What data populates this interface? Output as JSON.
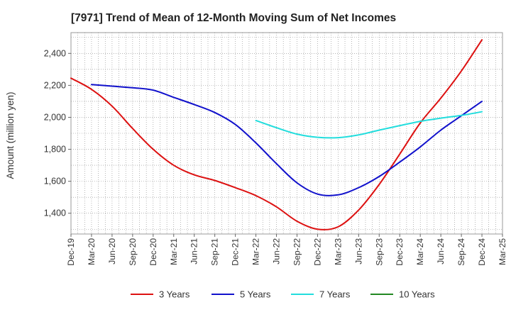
{
  "chart_data": {
    "type": "line",
    "title": "[7971]  Trend of Mean of 12-Month Moving Sum of Net Incomes",
    "xlabel": "",
    "ylabel": "Amount (million yen)",
    "ylim": [
      1270,
      2530
    ],
    "yticks": [
      1400,
      1600,
      1800,
      2000,
      2200,
      2400
    ],
    "ytick_labels": [
      "1,400",
      "1,600",
      "1,800",
      "2,000",
      "2,200",
      "2,400"
    ],
    "xticks": [
      "Dec-19",
      "Mar-20",
      "Jun-20",
      "Sep-20",
      "Dec-20",
      "Mar-21",
      "Jun-21",
      "Sep-21",
      "Dec-21",
      "Mar-22",
      "Jun-22",
      "Sep-22",
      "Dec-22",
      "Mar-23",
      "Jun-23",
      "Sep-23",
      "Dec-23",
      "Mar-24",
      "Jun-24",
      "Sep-24",
      "Dec-24",
      "Mar-25"
    ],
    "grid": true,
    "legend_position": "bottom",
    "series": [
      {
        "name": "3 Years",
        "color": "#dd1111",
        "points": [
          [
            "Dec-19",
            2245
          ],
          [
            "Mar-20",
            2175
          ],
          [
            "Jun-20",
            2070
          ],
          [
            "Sep-20",
            1930
          ],
          [
            "Dec-20",
            1800
          ],
          [
            "Mar-21",
            1700
          ],
          [
            "Jun-21",
            1640
          ],
          [
            "Sep-21",
            1605
          ],
          [
            "Dec-21",
            1560
          ],
          [
            "Mar-22",
            1510
          ],
          [
            "Jun-22",
            1440
          ],
          [
            "Sep-22",
            1350
          ],
          [
            "Dec-22",
            1300
          ],
          [
            "Mar-23",
            1315
          ],
          [
            "Jun-23",
            1420
          ],
          [
            "Sep-23",
            1580
          ],
          [
            "Dec-23",
            1770
          ],
          [
            "Mar-24",
            1965
          ],
          [
            "Jun-24",
            2120
          ],
          [
            "Sep-24",
            2290
          ],
          [
            "Dec-24",
            2485
          ]
        ]
      },
      {
        "name": "5 Years",
        "color": "#1111cc",
        "points": [
          [
            "Mar-20",
            2205
          ],
          [
            "Jun-20",
            2195
          ],
          [
            "Sep-20",
            2185
          ],
          [
            "Dec-20",
            2170
          ],
          [
            "Mar-21",
            2125
          ],
          [
            "Jun-21",
            2080
          ],
          [
            "Sep-21",
            2030
          ],
          [
            "Dec-21",
            1955
          ],
          [
            "Mar-22",
            1840
          ],
          [
            "Jun-22",
            1710
          ],
          [
            "Sep-22",
            1590
          ],
          [
            "Dec-22",
            1520
          ],
          [
            "Mar-23",
            1515
          ],
          [
            "Jun-23",
            1560
          ],
          [
            "Sep-23",
            1630
          ],
          [
            "Dec-23",
            1720
          ],
          [
            "Mar-24",
            1815
          ],
          [
            "Jun-24",
            1920
          ],
          [
            "Sep-24",
            2010
          ],
          [
            "Dec-24",
            2100
          ]
        ]
      },
      {
        "name": "7 Years",
        "color": "#22dddd",
        "points": [
          [
            "Mar-22",
            1980
          ],
          [
            "Jun-22",
            1935
          ],
          [
            "Sep-22",
            1895
          ],
          [
            "Dec-22",
            1875
          ],
          [
            "Mar-23",
            1873
          ],
          [
            "Jun-23",
            1890
          ],
          [
            "Sep-23",
            1920
          ],
          [
            "Dec-23",
            1948
          ],
          [
            "Mar-24",
            1975
          ],
          [
            "Jun-24",
            1995
          ],
          [
            "Sep-24",
            2012
          ],
          [
            "Dec-24",
            2035
          ]
        ]
      },
      {
        "name": "10 Years",
        "color": "#228822",
        "points": []
      }
    ]
  }
}
